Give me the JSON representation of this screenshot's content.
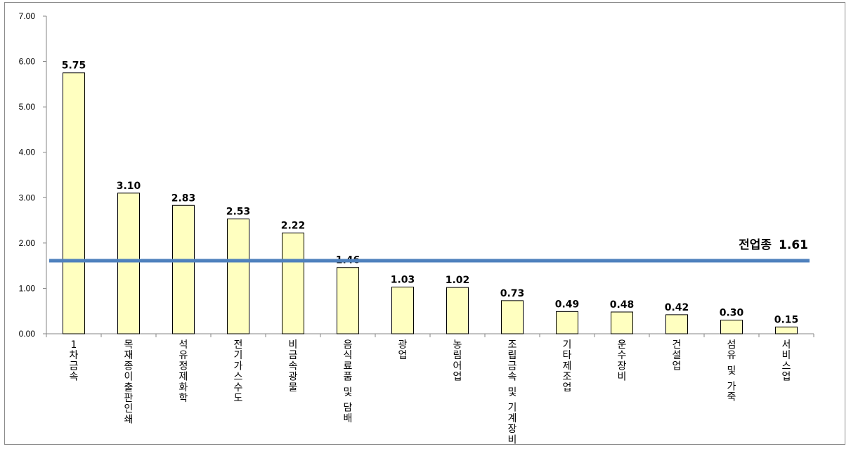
{
  "chart_data": {
    "type": "bar",
    "categories": [
      "1차금속",
      "목재종이출판인쇄",
      "석유정제화학",
      "전기가스수도",
      "비금속광물",
      "음식료품 및 담배",
      "광업",
      "농림어업",
      "조립금속 및 기계장비",
      "기타제조업",
      "운수장비",
      "건설업",
      "섬유 및 가죽",
      "서비스업"
    ],
    "values": [
      5.75,
      3.1,
      2.83,
      2.53,
      2.22,
      1.46,
      1.03,
      1.02,
      0.73,
      0.49,
      0.48,
      0.42,
      0.3,
      0.15
    ],
    "value_labels": [
      "5.75",
      "3.10",
      "2.83",
      "2.53",
      "2.22",
      "1.46",
      "1.03",
      "1.02",
      "0.73",
      "0.49",
      "0.48",
      "0.42",
      "0.30",
      "0.15"
    ],
    "yticks": [
      "0.00",
      "1.00",
      "2.00",
      "3.00",
      "4.00",
      "5.00",
      "6.00",
      "7.00"
    ],
    "ylim": [
      0,
      7
    ],
    "title": "",
    "xlabel": "",
    "ylabel": "",
    "reference_line": {
      "label": "전업종",
      "value_text": "1.61",
      "value": 1.61,
      "color": "#4f81bd"
    },
    "bar_fill": "#ffffc0",
    "bar_stroke": "#000000",
    "grid": false,
    "legend": "none"
  }
}
